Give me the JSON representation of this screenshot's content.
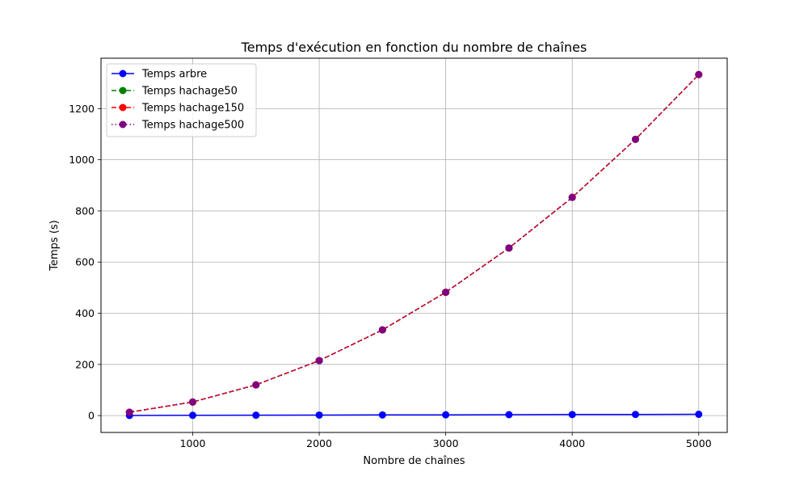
{
  "chart_data": {
    "type": "line",
    "title": "Temps d'exécution en fonction du nombre de chaînes",
    "xlabel": "Nombre de chaînes",
    "ylabel": "Temps (s)",
    "x": [
      500,
      1000,
      1500,
      2000,
      2500,
      3000,
      3500,
      4000,
      4500,
      5000
    ],
    "xlim": [
      275,
      5225
    ],
    "ylim": [
      -66,
      1397
    ],
    "xticks": [
      1000,
      2000,
      3000,
      4000,
      5000
    ],
    "yticks": [
      0,
      200,
      400,
      600,
      800,
      1000,
      1200
    ],
    "grid": true,
    "legend_position": "top-left",
    "series": [
      {
        "name": "Temps arbre",
        "color": "#0000ff",
        "linestyle": "solid",
        "marker": "circle",
        "values": [
          0.5,
          1,
          1.5,
          2,
          2.5,
          3,
          3.5,
          4,
          4.5,
          5
        ]
      },
      {
        "name": "Temps hachage50",
        "color": "#008000",
        "linestyle": "dashed",
        "marker": "circle",
        "values": [
          13,
          53,
          120,
          215,
          335,
          482,
          655,
          853,
          1080,
          1333
        ]
      },
      {
        "name": "Temps hachage150",
        "color": "#ff0000",
        "linestyle": "dashed",
        "marker": "circle",
        "values": [
          13,
          53,
          120,
          215,
          335,
          482,
          655,
          853,
          1080,
          1333
        ]
      },
      {
        "name": "Temps hachage500",
        "color": "#800080",
        "linestyle": "dotted",
        "marker": "circle",
        "values": [
          13,
          53,
          120,
          215,
          335,
          482,
          655,
          853,
          1080,
          1333
        ]
      }
    ]
  }
}
